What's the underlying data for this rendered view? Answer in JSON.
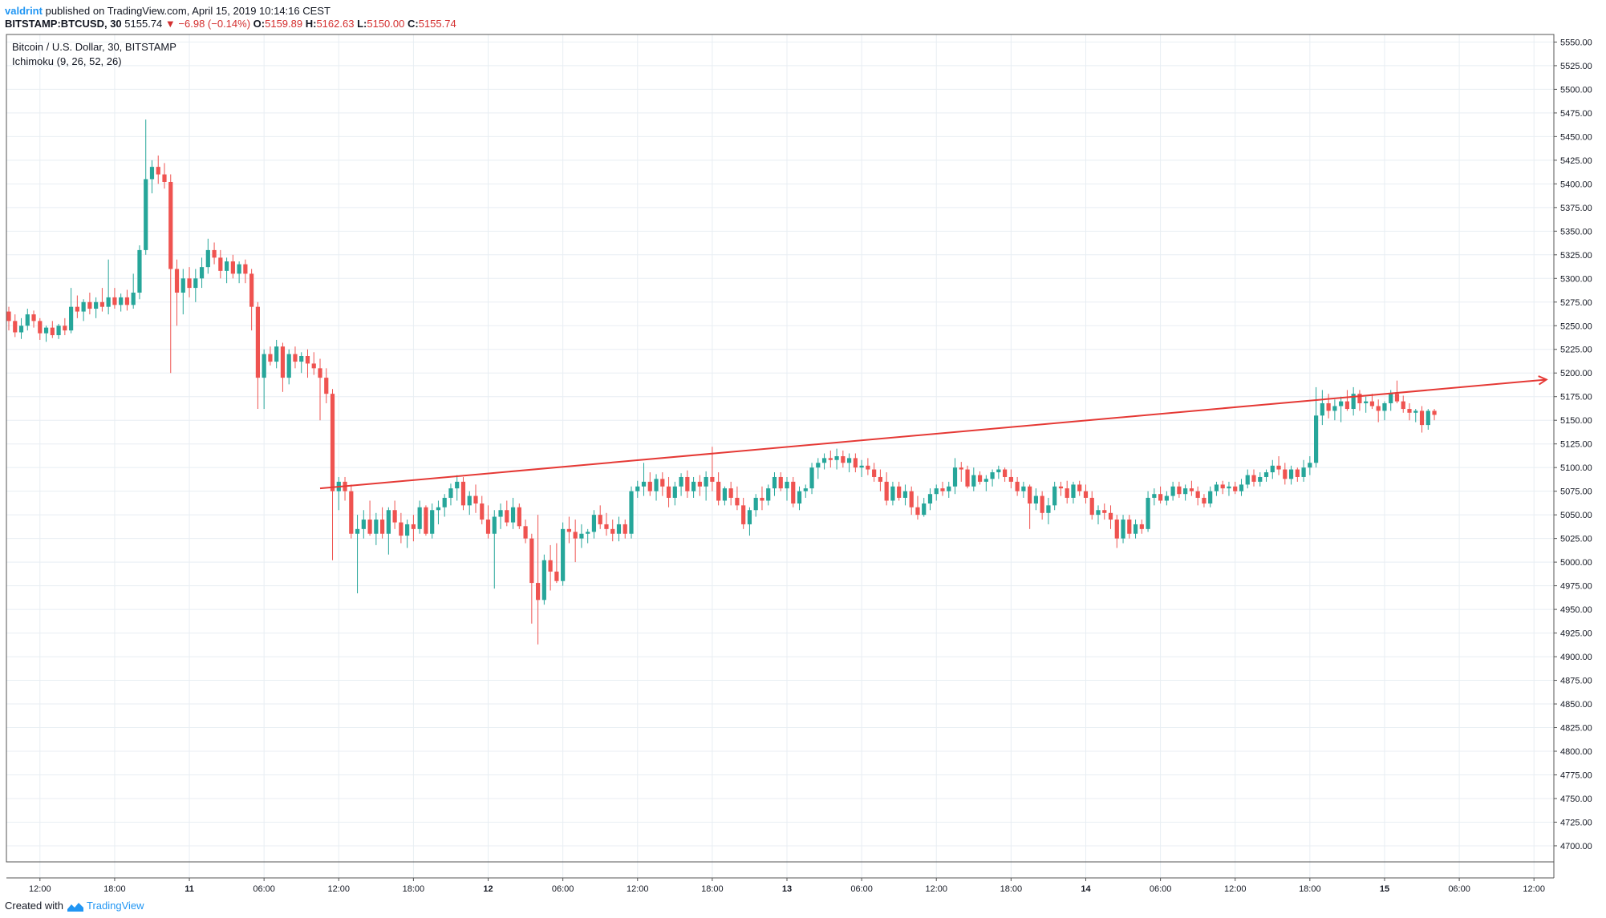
{
  "header": {
    "author": "valdrint",
    "published_text": "published on TradingView.com, April 15, 2019 10:14:16 CEST",
    "symbol": "BITSTAMP:BTCUSD, 30",
    "last_price": "5155.74",
    "change_arrow": "▼",
    "change": "−6.98 (−0.14%)",
    "o_label": "O:",
    "o_value": "5159.89",
    "h_label": "H:",
    "h_value": "5162.63",
    "l_label": "L:",
    "l_value": "5150.00",
    "c_label": "C:",
    "c_value": "5155.74"
  },
  "legend": {
    "title": "Bitcoin / U.S. Dollar, 30, BITSTAMP",
    "indicator": "Ichimoku (9, 26, 52, 26)"
  },
  "footer": {
    "created_with": "Created with",
    "brand": "TradingView"
  },
  "colors": {
    "up": "#26a69a",
    "down": "#ef5350",
    "trendline": "#e53935",
    "grid": "#e8eef3",
    "axis": "#555555"
  },
  "chart_data": {
    "type": "candlestick",
    "x_tick_labels": [
      "12:00",
      "18:00",
      "11",
      "06:00",
      "12:00",
      "18:00",
      "12",
      "06:00",
      "12:00",
      "18:00",
      "13",
      "06:00",
      "12:00",
      "18:00",
      "14",
      "06:00",
      "12:00",
      "18:00",
      "15",
      "06:00",
      "12:00"
    ],
    "y_tick_values": [
      5550,
      5525,
      5500,
      5475,
      5450,
      5425,
      5400,
      5375,
      5350,
      5325,
      5300,
      5275,
      5250,
      5225,
      5200,
      5175,
      5150,
      5125,
      5100,
      5075,
      5050,
      5025,
      5000,
      4975,
      4950,
      4925,
      4900,
      4875,
      4850,
      4825,
      4800,
      4775,
      4750,
      4725,
      4700
    ],
    "y_tick_labels": [
      "5550.00",
      "5525.00",
      "5500.00",
      "5475.00",
      "5450.00",
      "5425.00",
      "5400.00",
      "5375.00",
      "5350.00",
      "5325.00",
      "5300.00",
      "5275.00",
      "5250.00",
      "5225.00",
      "5200.00",
      "5175.00",
      "5150.00",
      "5125.00",
      "5100.00",
      "5075.00",
      "5050.00",
      "5025.00",
      "5000.00",
      "4975.00",
      "4950.00",
      "4925.00",
      "4900.00",
      "4875.00",
      "4850.00",
      "4825.00",
      "4800.00",
      "4775.00",
      "4750.00",
      "4725.00",
      "4700.00"
    ],
    "ylim": [
      4683,
      5558
    ],
    "candles": [
      [
        5265,
        5270,
        5245,
        5255
      ],
      [
        5255,
        5262,
        5238,
        5243
      ],
      [
        5243,
        5258,
        5236,
        5250
      ],
      [
        5250,
        5268,
        5245,
        5262
      ],
      [
        5262,
        5266,
        5248,
        5255
      ],
      [
        5255,
        5258,
        5235,
        5242
      ],
      [
        5242,
        5250,
        5233,
        5248
      ],
      [
        5248,
        5255,
        5237,
        5240
      ],
      [
        5240,
        5252,
        5236,
        5250
      ],
      [
        5250,
        5258,
        5240,
        5245
      ],
      [
        5245,
        5290,
        5242,
        5270
      ],
      [
        5270,
        5282,
        5258,
        5265
      ],
      [
        5265,
        5278,
        5255,
        5275
      ],
      [
        5275,
        5285,
        5262,
        5268
      ],
      [
        5268,
        5280,
        5258,
        5275
      ],
      [
        5275,
        5290,
        5265,
        5270
      ],
      [
        5270,
        5320,
        5262,
        5280
      ],
      [
        5280,
        5290,
        5268,
        5272
      ],
      [
        5272,
        5284,
        5265,
        5280
      ],
      [
        5280,
        5288,
        5266,
        5272
      ],
      [
        5272,
        5305,
        5268,
        5285
      ],
      [
        5285,
        5335,
        5278,
        5330
      ],
      [
        5330,
        5468,
        5325,
        5405
      ],
      [
        5405,
        5425,
        5390,
        5418
      ],
      [
        5418,
        5430,
        5400,
        5410
      ],
      [
        5410,
        5422,
        5395,
        5402
      ],
      [
        5402,
        5410,
        5200,
        5310
      ],
      [
        5310,
        5320,
        5250,
        5285
      ],
      [
        5285,
        5310,
        5262,
        5300
      ],
      [
        5300,
        5312,
        5280,
        5290
      ],
      [
        5290,
        5310,
        5275,
        5300
      ],
      [
        5300,
        5322,
        5290,
        5312
      ],
      [
        5312,
        5342,
        5305,
        5330
      ],
      [
        5330,
        5338,
        5315,
        5322
      ],
      [
        5322,
        5330,
        5300,
        5308
      ],
      [
        5308,
        5322,
        5295,
        5318
      ],
      [
        5318,
        5325,
        5300,
        5305
      ],
      [
        5305,
        5318,
        5295,
        5315
      ],
      [
        5315,
        5320,
        5295,
        5305
      ],
      [
        5305,
        5310,
        5245,
        5270
      ],
      [
        5270,
        5275,
        5162,
        5195
      ],
      [
        5195,
        5225,
        5162,
        5220
      ],
      [
        5220,
        5228,
        5208,
        5212
      ],
      [
        5212,
        5235,
        5205,
        5228
      ],
      [
        5228,
        5232,
        5180,
        5195
      ],
      [
        5195,
        5225,
        5188,
        5220
      ],
      [
        5220,
        5228,
        5205,
        5212
      ],
      [
        5212,
        5222,
        5200,
        5218
      ],
      [
        5218,
        5225,
        5195,
        5210
      ],
      [
        5210,
        5222,
        5198,
        5205
      ],
      [
        5205,
        5215,
        5150,
        5195
      ],
      [
        5195,
        5205,
        5168,
        5178
      ],
      [
        5178,
        5183,
        5002,
        5075
      ],
      [
        5075,
        5090,
        5055,
        5085
      ],
      [
        5085,
        5090,
        5065,
        5075
      ],
      [
        5075,
        5082,
        5025,
        5030
      ],
      [
        5030,
        5050,
        4967,
        5035
      ],
      [
        5035,
        5055,
        5025,
        5045
      ],
      [
        5045,
        5065,
        5028,
        5030
      ],
      [
        5030,
        5052,
        5018,
        5045
      ],
      [
        5045,
        5058,
        5025,
        5030
      ],
      [
        5030,
        5058,
        5008,
        5055
      ],
      [
        5055,
        5065,
        5035,
        5042
      ],
      [
        5042,
        5052,
        5020,
        5028
      ],
      [
        5028,
        5045,
        5015,
        5040
      ],
      [
        5040,
        5050,
        5022,
        5035
      ],
      [
        5035,
        5065,
        5030,
        5058
      ],
      [
        5058,
        5060,
        5028,
        5030
      ],
      [
        5030,
        5062,
        5025,
        5055
      ],
      [
        5055,
        5065,
        5040,
        5058
      ],
      [
        5058,
        5072,
        5048,
        5068
      ],
      [
        5068,
        5083,
        5060,
        5078
      ],
      [
        5078,
        5092,
        5065,
        5085
      ],
      [
        5085,
        5090,
        5055,
        5060
      ],
      [
        5060,
        5075,
        5050,
        5070
      ],
      [
        5070,
        5082,
        5052,
        5062
      ],
      [
        5062,
        5070,
        5040,
        5045
      ],
      [
        5045,
        5060,
        5025,
        5030
      ],
      [
        5030,
        5055,
        4972,
        5048
      ],
      [
        5048,
        5062,
        5035,
        5055
      ],
      [
        5055,
        5065,
        5038,
        5042
      ],
      [
        5042,
        5068,
        5035,
        5058
      ],
      [
        5058,
        5062,
        5035,
        5038
      ],
      [
        5038,
        5045,
        5020,
        5025
      ],
      [
        5025,
        5030,
        4935,
        4978
      ],
      [
        4978,
        5050,
        4913,
        4960
      ],
      [
        4960,
        5008,
        4955,
        5002
      ],
      [
        5002,
        5018,
        4970,
        4990
      ],
      [
        4990,
        5020,
        4978,
        4980
      ],
      [
        4980,
        5042,
        4975,
        5035
      ],
      [
        5035,
        5048,
        5020,
        5032
      ],
      [
        5032,
        5045,
        5000,
        5025
      ],
      [
        5025,
        5040,
        5015,
        5030
      ],
      [
        5030,
        5035,
        5020,
        5032
      ],
      [
        5032,
        5055,
        5025,
        5050
      ],
      [
        5050,
        5060,
        5035,
        5040
      ],
      [
        5040,
        5052,
        5028,
        5035
      ],
      [
        5035,
        5045,
        5022,
        5030
      ],
      [
        5030,
        5048,
        5022,
        5040
      ],
      [
        5040,
        5045,
        5025,
        5030
      ],
      [
        5030,
        5080,
        5025,
        5075
      ],
      [
        5075,
        5086,
        5068,
        5080
      ],
      [
        5080,
        5105,
        5070,
        5085
      ],
      [
        5085,
        5095,
        5070,
        5075
      ],
      [
        5075,
        5093,
        5065,
        5088
      ],
      [
        5088,
        5095,
        5070,
        5080
      ],
      [
        5080,
        5090,
        5058,
        5068
      ],
      [
        5068,
        5085,
        5060,
        5080
      ],
      [
        5080,
        5094,
        5070,
        5090
      ],
      [
        5090,
        5097,
        5068,
        5075
      ],
      [
        5075,
        5090,
        5068,
        5085
      ],
      [
        5085,
        5092,
        5070,
        5080
      ],
      [
        5080,
        5096,
        5065,
        5090
      ],
      [
        5090,
        5122,
        5075,
        5085
      ],
      [
        5085,
        5095,
        5060,
        5065
      ],
      [
        5065,
        5080,
        5060,
        5078
      ],
      [
        5078,
        5085,
        5060,
        5068
      ],
      [
        5068,
        5080,
        5055,
        5060
      ],
      [
        5060,
        5068,
        5035,
        5040
      ],
      [
        5040,
        5058,
        5028,
        5055
      ],
      [
        5055,
        5072,
        5048,
        5068
      ],
      [
        5068,
        5080,
        5055,
        5065
      ],
      [
        5065,
        5082,
        5060,
        5078
      ],
      [
        5078,
        5095,
        5070,
        5090
      ],
      [
        5090,
        5095,
        5075,
        5078
      ],
      [
        5078,
        5090,
        5065,
        5085
      ],
      [
        5085,
        5090,
        5058,
        5062
      ],
      [
        5062,
        5080,
        5055,
        5075
      ],
      [
        5075,
        5082,
        5068,
        5078
      ],
      [
        5078,
        5105,
        5072,
        5100
      ],
      [
        5100,
        5110,
        5088,
        5105
      ],
      [
        5105,
        5115,
        5098,
        5110
      ],
      [
        5110,
        5118,
        5100,
        5108
      ],
      [
        5108,
        5120,
        5098,
        5112
      ],
      [
        5112,
        5118,
        5100,
        5105
      ],
      [
        5105,
        5115,
        5095,
        5110
      ],
      [
        5110,
        5115,
        5095,
        5100
      ],
      [
        5100,
        5108,
        5090,
        5102
      ],
      [
        5102,
        5110,
        5092,
        5098
      ],
      [
        5098,
        5105,
        5085,
        5090
      ],
      [
        5090,
        5098,
        5075,
        5085
      ],
      [
        5085,
        5095,
        5060,
        5065
      ],
      [
        5065,
        5085,
        5060,
        5080
      ],
      [
        5080,
        5085,
        5065,
        5068
      ],
      [
        5068,
        5082,
        5060,
        5075
      ],
      [
        5075,
        5080,
        5050,
        5058
      ],
      [
        5058,
        5070,
        5045,
        5050
      ],
      [
        5050,
        5068,
        5048,
        5062
      ],
      [
        5062,
        5078,
        5055,
        5072
      ],
      [
        5072,
        5082,
        5065,
        5078
      ],
      [
        5078,
        5085,
        5070,
        5075
      ],
      [
        5075,
        5085,
        5068,
        5080
      ],
      [
        5080,
        5110,
        5072,
        5100
      ],
      [
        5100,
        5106,
        5085,
        5098
      ],
      [
        5098,
        5102,
        5078,
        5080
      ],
      [
        5080,
        5100,
        5075,
        5092
      ],
      [
        5092,
        5096,
        5082,
        5085
      ],
      [
        5085,
        5092,
        5075,
        5088
      ],
      [
        5088,
        5098,
        5080,
        5095
      ],
      [
        5095,
        5102,
        5088,
        5098
      ],
      [
        5098,
        5100,
        5085,
        5090
      ],
      [
        5090,
        5098,
        5078,
        5085
      ],
      [
        5085,
        5090,
        5070,
        5075
      ],
      [
        5075,
        5085,
        5068,
        5080
      ],
      [
        5080,
        5082,
        5035,
        5062
      ],
      [
        5062,
        5078,
        5055,
        5070
      ],
      [
        5070,
        5075,
        5045,
        5052
      ],
      [
        5052,
        5068,
        5040,
        5060
      ],
      [
        5060,
        5085,
        5055,
        5080
      ],
      [
        5080,
        5085,
        5070,
        5078
      ],
      [
        5078,
        5086,
        5062,
        5068
      ],
      [
        5068,
        5085,
        5062,
        5082
      ],
      [
        5082,
        5086,
        5070,
        5075
      ],
      [
        5075,
        5082,
        5062,
        5068
      ],
      [
        5068,
        5075,
        5045,
        5050
      ],
      [
        5050,
        5060,
        5040,
        5055
      ],
      [
        5055,
        5062,
        5045,
        5052
      ],
      [
        5052,
        5060,
        5035,
        5045
      ],
      [
        5045,
        5050,
        5015,
        5025
      ],
      [
        5025,
        5050,
        5020,
        5045
      ],
      [
        5045,
        5050,
        5025,
        5030
      ],
      [
        5030,
        5045,
        5025,
        5040
      ],
      [
        5040,
        5045,
        5030,
        5035
      ],
      [
        5035,
        5075,
        5032,
        5068
      ],
      [
        5068,
        5078,
        5060,
        5072
      ],
      [
        5072,
        5080,
        5062,
        5065
      ],
      [
        5065,
        5075,
        5060,
        5070
      ],
      [
        5070,
        5085,
        5065,
        5080
      ],
      [
        5080,
        5085,
        5068,
        5072
      ],
      [
        5072,
        5082,
        5065,
        5078
      ],
      [
        5078,
        5086,
        5070,
        5075
      ],
      [
        5075,
        5080,
        5060,
        5068
      ],
      [
        5068,
        5072,
        5058,
        5062
      ],
      [
        5062,
        5080,
        5058,
        5075
      ],
      [
        5075,
        5085,
        5070,
        5082
      ],
      [
        5082,
        5086,
        5072,
        5078
      ],
      [
        5078,
        5085,
        5070,
        5080
      ],
      [
        5080,
        5085,
        5072,
        5075
      ],
      [
        5075,
        5088,
        5070,
        5082
      ],
      [
        5082,
        5098,
        5078,
        5092
      ],
      [
        5092,
        5098,
        5080,
        5085
      ],
      [
        5085,
        5095,
        5080,
        5090
      ],
      [
        5090,
        5098,
        5085,
        5095
      ],
      [
        5095,
        5108,
        5088,
        5102
      ],
      [
        5102,
        5112,
        5092,
        5098
      ],
      [
        5098,
        5105,
        5082,
        5088
      ],
      [
        5088,
        5102,
        5082,
        5098
      ],
      [
        5098,
        5100,
        5085,
        5090
      ],
      [
        5090,
        5108,
        5085,
        5100
      ],
      [
        5100,
        5112,
        5092,
        5105
      ],
      [
        5105,
        5185,
        5100,
        5155
      ],
      [
        5155,
        5182,
        5145,
        5168
      ],
      [
        5168,
        5178,
        5152,
        5160
      ],
      [
        5160,
        5172,
        5150,
        5165
      ],
      [
        5165,
        5175,
        5148,
        5170
      ],
      [
        5170,
        5182,
        5160,
        5162
      ],
      [
        5162,
        5185,
        5155,
        5178
      ],
      [
        5178,
        5182,
        5160,
        5168
      ],
      [
        5168,
        5175,
        5158,
        5170
      ],
      [
        5170,
        5178,
        5162,
        5165
      ],
      [
        5165,
        5172,
        5148,
        5160
      ],
      [
        5160,
        5170,
        5150,
        5168
      ],
      [
        5168,
        5182,
        5160,
        5178
      ],
      [
        5178,
        5192,
        5168,
        5170
      ],
      [
        5170,
        5176,
        5158,
        5162
      ],
      [
        5162,
        5168,
        5150,
        5158
      ],
      [
        5158,
        5162,
        5148,
        5160
      ],
      [
        5160,
        5165,
        5137,
        5145
      ],
      [
        5145,
        5162,
        5140,
        5160
      ],
      [
        5160,
        5162,
        5150,
        5155.74
      ]
    ],
    "trendline": {
      "start": {
        "index": 50,
        "price": 5078
      },
      "end": {
        "index": 247,
        "price": 5193
      }
    },
    "legend_position": "top-left",
    "grid": true
  }
}
